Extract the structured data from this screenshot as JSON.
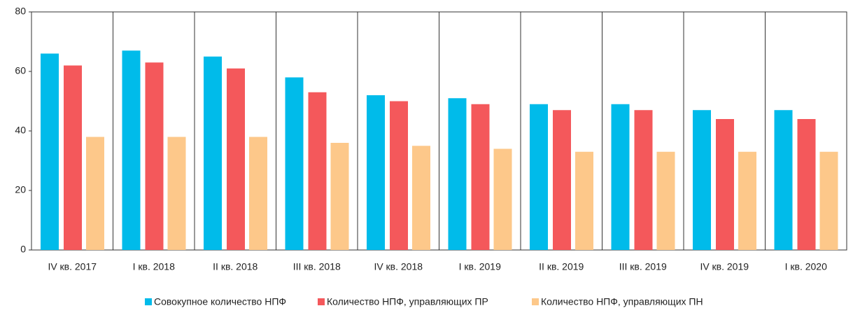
{
  "chart_data": {
    "type": "bar",
    "categories": [
      "IV кв. 2017",
      "I кв. 2018",
      "II кв. 2018",
      "III кв. 2018",
      "IV кв. 2018",
      "I кв. 2019",
      "II кв. 2019",
      "III кв. 2019",
      "IV кв. 2019",
      "I кв. 2020"
    ],
    "series": [
      {
        "name": "Совокупное количество НПФ",
        "color": "#00bbea",
        "values": [
          66,
          67,
          65,
          58,
          52,
          51,
          49,
          49,
          47,
          47
        ]
      },
      {
        "name": "Количество НПФ, управляющих ПР",
        "color": "#f4585b",
        "values": [
          62,
          63,
          61,
          53,
          50,
          49,
          47,
          47,
          44,
          44
        ]
      },
      {
        "name": "Количество НПФ, управляющих ПН",
        "color": "#fdc88a",
        "values": [
          38,
          38,
          38,
          36,
          35,
          34,
          33,
          33,
          33,
          33
        ]
      }
    ],
    "ylim": [
      0,
      80
    ],
    "yticks": [
      0,
      20,
      40,
      60,
      80
    ],
    "legend": "bottom"
  }
}
